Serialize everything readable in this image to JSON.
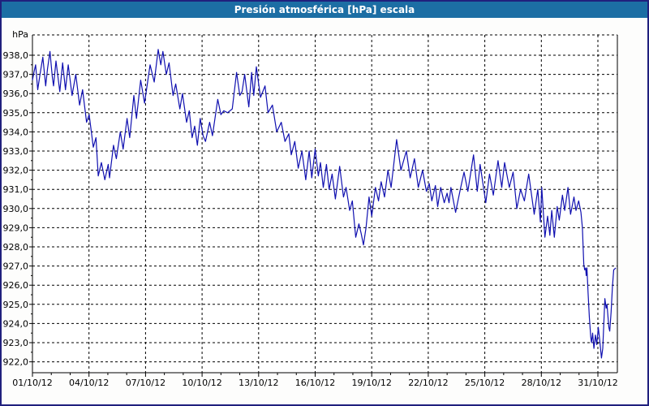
{
  "window": {
    "title": "Presión atmosférica [hPa] escala"
  },
  "colors": {
    "titlebar_bg": "#1c6ea4",
    "title_text": "#ffffff",
    "outer_border": "#20207d",
    "background": "#fdfdfc",
    "plot_background": "#ffffff",
    "gridline": "#000000",
    "line": "#1010b0"
  },
  "chart_data": {
    "type": "line",
    "title": "Presión atmosférica [hPa] escala",
    "ylabel": "hPa",
    "grid": "dashed",
    "legend": "none",
    "y_axis": {
      "min": 922,
      "max": 938,
      "step": 1,
      "ticks": [
        {
          "value": 938,
          "label": "938,0"
        },
        {
          "value": 937,
          "label": "937,0"
        },
        {
          "value": 936,
          "label": "936,0"
        },
        {
          "value": 935,
          "label": "935,0"
        },
        {
          "value": 934,
          "label": "934,0"
        },
        {
          "value": 933,
          "label": "933,0"
        },
        {
          "value": 932,
          "label": "932,0"
        },
        {
          "value": 931,
          "label": "931,0"
        },
        {
          "value": 930,
          "label": "930,0"
        },
        {
          "value": 929,
          "label": "929,0"
        },
        {
          "value": 928,
          "label": "928,0"
        },
        {
          "value": 927,
          "label": "927,0"
        },
        {
          "value": 926,
          "label": "926,0"
        },
        {
          "value": 925,
          "label": "925,0"
        },
        {
          "value": 924,
          "label": "924,0"
        },
        {
          "value": 923,
          "label": "923,0"
        },
        {
          "value": 922,
          "label": "922,0"
        }
      ]
    },
    "x_axis": {
      "start_day": 1,
      "end_day": 32,
      "minor_tick_every_days": 1,
      "ticks": [
        {
          "day": 1,
          "label": "01/10/12"
        },
        {
          "day": 4,
          "label": "04/10/12"
        },
        {
          "day": 7,
          "label": "07/10/12"
        },
        {
          "day": 10,
          "label": "10/10/12"
        },
        {
          "day": 13,
          "label": "13/10/12"
        },
        {
          "day": 16,
          "label": "16/10/12"
        },
        {
          "day": 19,
          "label": "19/10/12"
        },
        {
          "day": 22,
          "label": "22/10/12"
        },
        {
          "day": 25,
          "label": "25/10/12"
        },
        {
          "day": 28,
          "label": "28/10/12"
        },
        {
          "day": 31,
          "label": "31/10/12"
        }
      ]
    },
    "series": [
      {
        "name": "presion-atmosferica-hpa",
        "color": "#1010b0",
        "points": [
          [
            1.0,
            936.7
          ],
          [
            1.1,
            937.2
          ],
          [
            1.17,
            937.5
          ],
          [
            1.28,
            936.2
          ],
          [
            1.4,
            937.0
          ],
          [
            1.55,
            937.9
          ],
          [
            1.7,
            936.4
          ],
          [
            1.8,
            937.3
          ],
          [
            1.93,
            938.2
          ],
          [
            2.05,
            936.9
          ],
          [
            2.12,
            936.4
          ],
          [
            2.25,
            937.7
          ],
          [
            2.45,
            936.1
          ],
          [
            2.6,
            937.6
          ],
          [
            2.75,
            936.2
          ],
          [
            2.9,
            937.5
          ],
          [
            3.1,
            935.9
          ],
          [
            3.3,
            937.0
          ],
          [
            3.5,
            935.4
          ],
          [
            3.66,
            936.2
          ],
          [
            3.87,
            934.5
          ],
          [
            4.01,
            934.9
          ],
          [
            4.23,
            933.2
          ],
          [
            4.37,
            933.7
          ],
          [
            4.49,
            931.7
          ],
          [
            4.66,
            932.4
          ],
          [
            4.84,
            931.5
          ],
          [
            5.02,
            932.3
          ],
          [
            5.09,
            931.6
          ],
          [
            5.3,
            933.3
          ],
          [
            5.45,
            932.6
          ],
          [
            5.66,
            934.0
          ],
          [
            5.81,
            933.1
          ],
          [
            6.02,
            934.7
          ],
          [
            6.16,
            933.7
          ],
          [
            6.38,
            935.9
          ],
          [
            6.52,
            934.7
          ],
          [
            6.74,
            936.7
          ],
          [
            6.95,
            935.5
          ],
          [
            7.24,
            937.5
          ],
          [
            7.46,
            936.6
          ],
          [
            7.67,
            938.3
          ],
          [
            7.81,
            937.5
          ],
          [
            7.92,
            938.2
          ],
          [
            8.1,
            937.0
          ],
          [
            8.25,
            937.6
          ],
          [
            8.46,
            935.9
          ],
          [
            8.6,
            936.5
          ],
          [
            8.82,
            935.2
          ],
          [
            8.96,
            936.0
          ],
          [
            9.18,
            934.5
          ],
          [
            9.32,
            935.1
          ],
          [
            9.47,
            933.7
          ],
          [
            9.61,
            934.3
          ],
          [
            9.75,
            933.3
          ],
          [
            9.9,
            934.7
          ],
          [
            10.05,
            933.8
          ],
          [
            10.18,
            933.5
          ],
          [
            10.4,
            934.5
          ],
          [
            10.55,
            933.8
          ],
          [
            10.83,
            935.7
          ],
          [
            11.0,
            934.9
          ],
          [
            11.15,
            935.1
          ],
          [
            11.35,
            935.0
          ],
          [
            11.6,
            935.2
          ],
          [
            11.83,
            937.1
          ],
          [
            12.0,
            935.9
          ],
          [
            12.12,
            936.1
          ],
          [
            12.26,
            937.0
          ],
          [
            12.48,
            935.3
          ],
          [
            12.63,
            937.1
          ],
          [
            12.74,
            935.9
          ],
          [
            12.88,
            937.4
          ],
          [
            13.1,
            935.8
          ],
          [
            13.34,
            936.4
          ],
          [
            13.5,
            935.0
          ],
          [
            13.73,
            935.4
          ],
          [
            13.96,
            934.0
          ],
          [
            14.2,
            934.5
          ],
          [
            14.4,
            933.5
          ],
          [
            14.6,
            933.9
          ],
          [
            14.73,
            932.8
          ],
          [
            14.92,
            933.5
          ],
          [
            15.1,
            932.1
          ],
          [
            15.3,
            933.0
          ],
          [
            15.5,
            931.5
          ],
          [
            15.68,
            933.0
          ],
          [
            15.82,
            931.6
          ],
          [
            16.0,
            933.1
          ],
          [
            16.17,
            931.7
          ],
          [
            16.28,
            932.4
          ],
          [
            16.43,
            931.1
          ],
          [
            16.6,
            932.3
          ],
          [
            16.74,
            931.0
          ],
          [
            16.9,
            931.8
          ],
          [
            17.07,
            930.5
          ],
          [
            17.3,
            932.2
          ],
          [
            17.5,
            930.6
          ],
          [
            17.64,
            931.1
          ],
          [
            17.83,
            929.9
          ],
          [
            17.97,
            930.4
          ],
          [
            18.15,
            928.5
          ],
          [
            18.32,
            929.2
          ],
          [
            18.44,
            928.7
          ],
          [
            18.56,
            928.1
          ],
          [
            18.7,
            929.0
          ],
          [
            18.86,
            930.6
          ],
          [
            19.0,
            929.6
          ],
          [
            19.2,
            931.1
          ],
          [
            19.36,
            930.4
          ],
          [
            19.5,
            931.4
          ],
          [
            19.68,
            930.6
          ],
          [
            19.86,
            932.0
          ],
          [
            20.03,
            931.1
          ],
          [
            20.32,
            933.6
          ],
          [
            20.55,
            932.0
          ],
          [
            20.84,
            933.0
          ],
          [
            21.04,
            931.6
          ],
          [
            21.27,
            932.6
          ],
          [
            21.47,
            931.1
          ],
          [
            21.7,
            932.0
          ],
          [
            21.9,
            930.9
          ],
          [
            22.05,
            931.3
          ],
          [
            22.19,
            930.4
          ],
          [
            22.38,
            931.2
          ],
          [
            22.5,
            930.1
          ],
          [
            22.66,
            931.1
          ],
          [
            22.85,
            930.3
          ],
          [
            23.0,
            930.8
          ],
          [
            23.1,
            930.3
          ],
          [
            23.2,
            931.1
          ],
          [
            23.45,
            929.8
          ],
          [
            23.7,
            931.0
          ],
          [
            23.9,
            931.9
          ],
          [
            24.1,
            930.9
          ],
          [
            24.4,
            932.8
          ],
          [
            24.6,
            930.9
          ],
          [
            24.75,
            932.3
          ],
          [
            25.05,
            930.3
          ],
          [
            25.25,
            931.8
          ],
          [
            25.45,
            930.7
          ],
          [
            25.7,
            932.5
          ],
          [
            25.9,
            931.1
          ],
          [
            26.05,
            932.4
          ],
          [
            26.3,
            931.1
          ],
          [
            26.5,
            931.9
          ],
          [
            26.7,
            930.0
          ],
          [
            26.9,
            931.0
          ],
          [
            27.1,
            930.4
          ],
          [
            27.33,
            931.8
          ],
          [
            27.62,
            929.7
          ],
          [
            27.81,
            931.0
          ],
          [
            27.95,
            929.3
          ],
          [
            28.02,
            931.1
          ],
          [
            28.19,
            928.5
          ],
          [
            28.33,
            929.6
          ],
          [
            28.45,
            928.6
          ],
          [
            28.55,
            929.9
          ],
          [
            28.69,
            928.5
          ],
          [
            28.84,
            930.1
          ],
          [
            28.95,
            929.4
          ],
          [
            29.12,
            930.7
          ],
          [
            29.24,
            929.9
          ],
          [
            29.41,
            931.1
          ],
          [
            29.55,
            929.7
          ],
          [
            29.73,
            930.6
          ],
          [
            29.84,
            929.9
          ],
          [
            29.98,
            930.4
          ],
          [
            30.1,
            929.8
          ],
          [
            30.18,
            929.0
          ],
          [
            30.25,
            927.1
          ],
          [
            30.3,
            926.8
          ],
          [
            30.35,
            926.9
          ],
          [
            30.38,
            926.5
          ],
          [
            30.42,
            926.9
          ],
          [
            30.48,
            925.6
          ],
          [
            30.55,
            924.3
          ],
          [
            30.62,
            923.3
          ],
          [
            30.66,
            923.0
          ],
          [
            30.72,
            923.5
          ],
          [
            30.79,
            922.7
          ],
          [
            30.87,
            923.4
          ],
          [
            30.94,
            922.9
          ],
          [
            31.02,
            923.8
          ],
          [
            31.09,
            923.2
          ],
          [
            31.19,
            922.2
          ],
          [
            31.26,
            922.7
          ],
          [
            31.37,
            925.3
          ],
          [
            31.44,
            924.8
          ],
          [
            31.48,
            925.0
          ],
          [
            31.58,
            923.8
          ],
          [
            31.63,
            923.6
          ],
          [
            31.7,
            924.6
          ],
          [
            31.77,
            925.9
          ],
          [
            31.84,
            926.8
          ],
          [
            31.95,
            926.9
          ]
        ]
      }
    ]
  }
}
